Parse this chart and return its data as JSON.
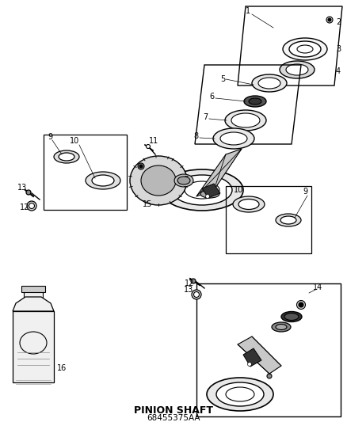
{
  "title": "PINION SHAFT",
  "subtitle": "68455375AA",
  "bg_color": "#ffffff",
  "fig_width": 4.38,
  "fig_height": 5.33,
  "dpi": 100
}
